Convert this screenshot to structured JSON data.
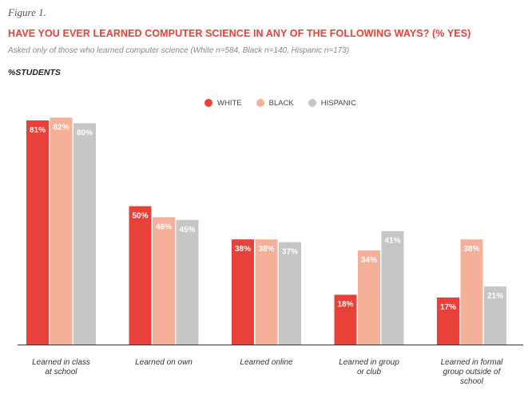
{
  "figure_label": "Figure 1.",
  "chart_data": {
    "type": "bar",
    "title": "HAVE YOU EVER LEARNED COMPUTER SCIENCE IN ANY OF THE FOLLOWING WAYS? (% YES)",
    "subtitle": "Asked only of those who learned computer science (White n=584, Black n=140, Hispanic n=173)",
    "ylabel": "%STUDENTS",
    "xlabel": "",
    "ylim": [
      0,
      100
    ],
    "grid": false,
    "legend_position": "top-center",
    "categories": [
      [
        "Learned in class",
        "at school"
      ],
      [
        "Learned on own"
      ],
      [
        "Learned online"
      ],
      [
        "Learned in group",
        "or club"
      ],
      [
        "Learned in formal",
        "group outside of",
        "school"
      ]
    ],
    "series": [
      {
        "name": "WHITE",
        "color": "#e8413a",
        "values": [
          81,
          50,
          38,
          18,
          17
        ],
        "labels": [
          "81%",
          "50%",
          "38%",
          "18%",
          "17%"
        ]
      },
      {
        "name": "BLACK",
        "color": "#f5b09a",
        "values": [
          82,
          46,
          38,
          34,
          38
        ],
        "labels": [
          "82%",
          "46%",
          "38%",
          "34%",
          "38%"
        ]
      },
      {
        "name": "HISPANIC",
        "color": "#c6c6c6",
        "values": [
          80,
          45,
          37,
          41,
          21
        ],
        "labels": [
          "80%",
          "45%",
          "37%",
          "41%",
          "21%"
        ]
      }
    ]
  }
}
